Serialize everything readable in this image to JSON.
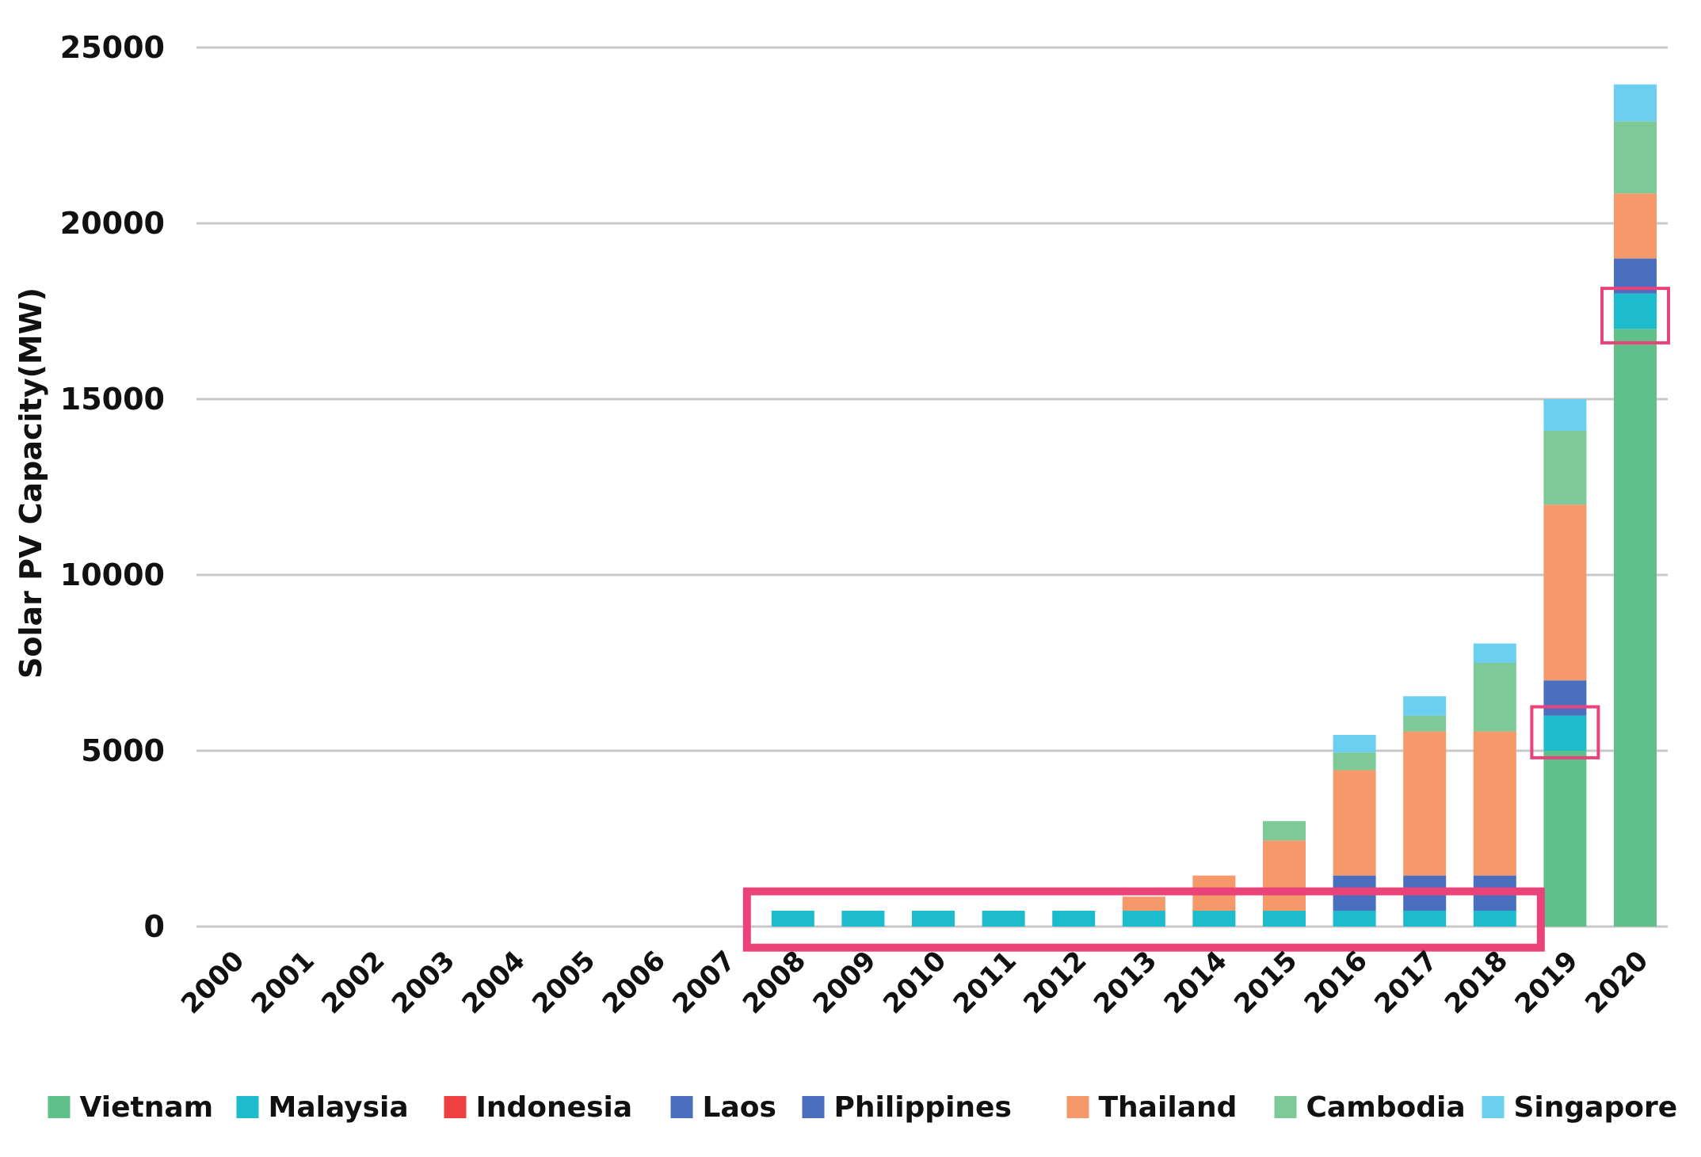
{
  "chart_data": {
    "type": "bar",
    "stacked": true,
    "title": "",
    "xlabel": "",
    "ylabel": "Solar PV Capacity(MW)",
    "ylim": [
      0,
      25000
    ],
    "yticks": [
      0,
      5000,
      10000,
      15000,
      20000,
      25000
    ],
    "grid": true,
    "legend_position": "bottom",
    "categories": [
      "2000",
      "2001",
      "2002",
      "2003",
      "2004",
      "2005",
      "2006",
      "2007",
      "2008",
      "2009",
      "2010",
      "2011",
      "2012",
      "2013",
      "2014",
      "2015",
      "2016",
      "2017",
      "2018",
      "2019",
      "2020"
    ],
    "series": [
      {
        "name": "Vietnam",
        "color": "#5fc08a",
        "values": [
          0,
          0,
          0,
          0,
          0,
          0,
          0,
          0,
          0,
          0,
          0,
          0,
          0,
          0,
          0,
          0,
          0,
          0,
          0,
          5000,
          17000
        ]
      },
      {
        "name": "Malaysia",
        "color": "#1dbccd",
        "values": [
          0,
          0,
          0,
          0,
          0,
          0,
          0,
          0,
          450,
          450,
          450,
          450,
          450,
          450,
          450,
          450,
          450,
          450,
          450,
          1000,
          1000
        ]
      },
      {
        "name": "Indonesia",
        "color": "#ee4040",
        "values": [
          0,
          0,
          0,
          0,
          0,
          0,
          0,
          0,
          0,
          0,
          0,
          0,
          0,
          0,
          0,
          0,
          0,
          0,
          0,
          0,
          0
        ]
      },
      {
        "name": "Laos",
        "color": "#4a6fbf",
        "values": [
          0,
          0,
          0,
          0,
          0,
          0,
          0,
          0,
          0,
          0,
          0,
          0,
          0,
          0,
          0,
          0,
          0,
          0,
          0,
          0,
          0
        ]
      },
      {
        "name": "Philippines",
        "color": "#4a6fbf",
        "values": [
          0,
          0,
          0,
          0,
          0,
          0,
          0,
          0,
          0,
          0,
          0,
          0,
          0,
          0,
          0,
          0,
          1000,
          1000,
          1000,
          1000,
          1000
        ]
      },
      {
        "name": "Thailand",
        "color": "#f5986a",
        "values": [
          0,
          0,
          0,
          0,
          0,
          0,
          0,
          0,
          0,
          0,
          0,
          0,
          0,
          400,
          1000,
          2000,
          3000,
          4100,
          4100,
          5000,
          1850
        ]
      },
      {
        "name": "Cambodia",
        "color": "#7dca98",
        "values": [
          0,
          0,
          0,
          0,
          0,
          0,
          0,
          0,
          0,
          0,
          0,
          0,
          0,
          0,
          0,
          550,
          500,
          450,
          1950,
          2100,
          2050
        ]
      },
      {
        "name": "Singapore",
        "color": "#6dcff0",
        "values": [
          0,
          0,
          0,
          0,
          0,
          0,
          0,
          0,
          0,
          0,
          0,
          0,
          0,
          0,
          0,
          0,
          500,
          550,
          550,
          900,
          1050
        ]
      }
    ],
    "annotations": [
      {
        "type": "highlight-box",
        "color": "#e9437a",
        "from_category": "2008",
        "to_category": "2018",
        "y_range": [
          -600,
          1000
        ]
      },
      {
        "type": "highlight-box",
        "color": "#e9437a",
        "from_category": "2019",
        "to_category": "2019",
        "y_range": [
          4800,
          6250
        ]
      },
      {
        "type": "highlight-box",
        "color": "#e9437a",
        "from_category": "2020",
        "to_category": "2020",
        "y_range": [
          16600,
          18150
        ]
      }
    ]
  }
}
